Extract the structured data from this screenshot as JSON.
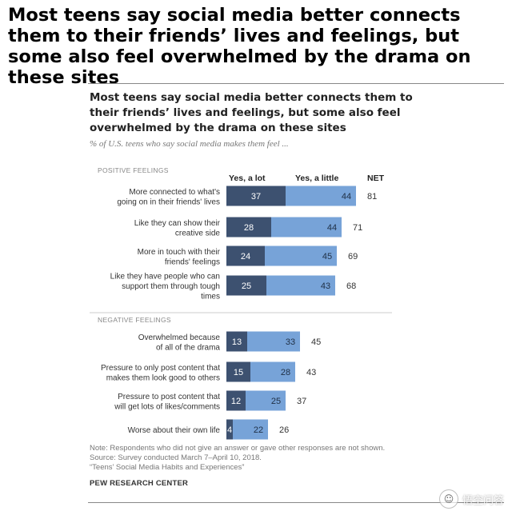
{
  "headline": "Most teens say social media better connects them to their friends’ lives and feelings, but some also feel overwhelmed by the drama on these sites",
  "colors": {
    "yes_a_lot": "#3d5170",
    "yes_a_little": "#77a3d8",
    "divider": "#cccccc",
    "section_label": "#888888"
  },
  "chart_data": {
    "type": "bar",
    "stacked": true,
    "orientation": "horizontal",
    "title": "Most teens say social media better connects them to their friends’ lives and feelings, but some also feel overwhelmed by the drama on these sites",
    "subtitle": "% of U.S. teens who say social media makes them feel ...",
    "column_headers": {
      "yes_a_lot": "Yes, a lot",
      "yes_a_little": "Yes, a little",
      "net": "NET"
    },
    "series": [
      {
        "name": "Yes, a lot",
        "values": [
          37,
          28,
          24,
          25,
          13,
          15,
          12,
          4
        ]
      },
      {
        "name": "Yes, a little",
        "values": [
          44,
          44,
          45,
          43,
          33,
          28,
          25,
          22
        ]
      }
    ],
    "net": [
      81,
      71,
      69,
      68,
      45,
      43,
      37,
      26
    ],
    "groups": [
      {
        "label": "POSITIVE FEELINGS",
        "items": [
          {
            "lines": [
              "More connected to what's",
              "going on in their friends' lives"
            ]
          },
          {
            "lines": [
              "Like they can show their",
              "creative side"
            ]
          },
          {
            "lines": [
              "More in touch with their",
              "friends' feelings"
            ]
          },
          {
            "lines": [
              "Like they have people who can",
              "support them through tough",
              "times"
            ]
          }
        ]
      },
      {
        "label": "NEGATIVE FEELINGS",
        "items": [
          {
            "lines": [
              "Overwhelmed because",
              "of all of the drama"
            ]
          },
          {
            "lines": [
              "Pressure to only post content that",
              "makes them look good to others"
            ]
          },
          {
            "lines": [
              "Pressure to post content that",
              "will get lots of likes/comments"
            ]
          },
          {
            "lines": [
              "Worse about their own life"
            ]
          }
        ]
      }
    ],
    "xlim": [
      0,
      100
    ],
    "legend": "column-headers-top",
    "grid": false
  },
  "notes": {
    "line1": "Note: Respondents who did not give an answer or gave other responses are not shown.",
    "line2": "Source: Survey conducted March 7–April 10, 2018.",
    "line3": "“Teens’ Social Media Habits and Experiences”"
  },
  "source_org": "PEW RESEARCH CENTER",
  "watermark": {
    "text": "悟空问答",
    "icon": "chat-bubble-icon"
  }
}
